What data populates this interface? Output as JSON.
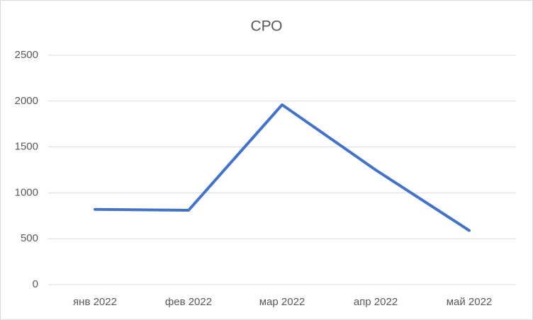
{
  "chart_data": {
    "type": "line",
    "title": "СРО",
    "categories": [
      "янв 2022",
      "фев 2022",
      "мар 2022",
      "апр 2022",
      "май 2022"
    ],
    "values": [
      820,
      810,
      1960,
      1250,
      590
    ],
    "color": "#4472c4",
    "ylim": [
      0,
      2500
    ],
    "yticks": [
      0,
      500,
      1000,
      1500,
      2000,
      2500
    ],
    "grid": true
  }
}
